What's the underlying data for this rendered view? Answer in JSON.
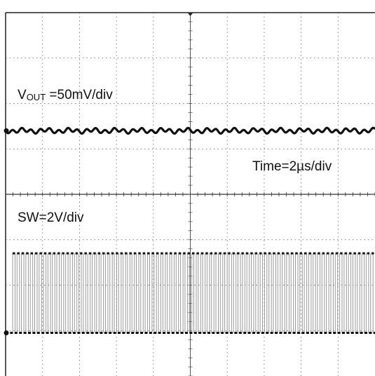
{
  "chart_data": {
    "type": "line",
    "title": "",
    "annotations": {
      "vout_main": "V",
      "vout_sub": "OUT",
      "vout_rest": " =50mV/div",
      "time": "Time=2µs/div",
      "sw": "SW=2V/div"
    },
    "grid": true,
    "divisions": {
      "horizontal": 10,
      "vertical": 8
    },
    "time_per_div_us": 2,
    "series": [
      {
        "name": "VOUT",
        "scale": "50mV/div",
        "level_div_from_top": 2.6,
        "ripple_div": 0.08
      },
      {
        "name": "SW",
        "scale": "2V/div",
        "low_div_from_top": 7.05,
        "high_div_from_top": 5.3,
        "cycles": 82
      }
    ],
    "colors": {
      "trace": "#111111",
      "grid": "#555555",
      "background": "#ffffff",
      "sw_stroke": "#9a9a9a"
    }
  }
}
